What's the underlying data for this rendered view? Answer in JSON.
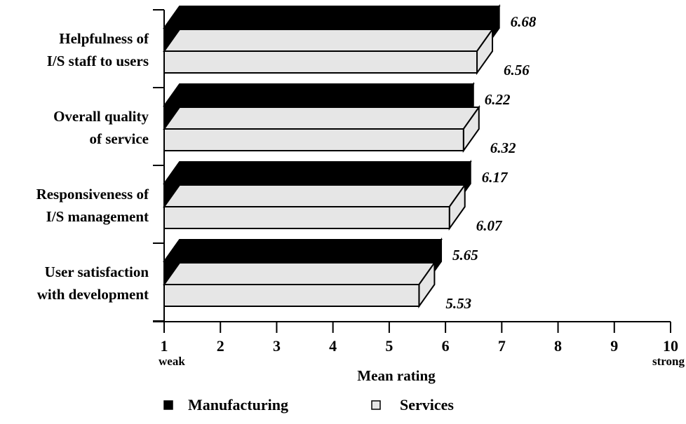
{
  "chart_data": {
    "type": "bar",
    "orientation": "horizontal",
    "categories": [
      [
        "Helpfulness of",
        "I/S staff to users"
      ],
      [
        "Overall quality",
        "of service"
      ],
      [
        "Responsiveness of",
        "I/S management"
      ],
      [
        "User satisfaction",
        "with development"
      ]
    ],
    "series": [
      {
        "name": "Manufacturing",
        "values": [
          6.68,
          6.22,
          6.17,
          5.65
        ],
        "color": "#000000"
      },
      {
        "name": "Services",
        "values": [
          6.56,
          6.32,
          6.07,
          5.53
        ],
        "color": "#e6e6e6"
      }
    ],
    "value_labels": {
      "Manufacturing": [
        "6.68",
        "6.22",
        "6.17",
        "5.65"
      ],
      "Services": [
        "6.56",
        "6.32",
        "6.07",
        "5.53"
      ]
    },
    "xlim": [
      1,
      10
    ],
    "xticks": [
      "1",
      "2",
      "3",
      "4",
      "5",
      "6",
      "7",
      "8",
      "9",
      "10"
    ],
    "xlabel": "Mean rating",
    "x_low_label": "weak",
    "x_high_label": "strong",
    "legend_position": "bottom",
    "grid": false,
    "style": "3d-bars"
  }
}
